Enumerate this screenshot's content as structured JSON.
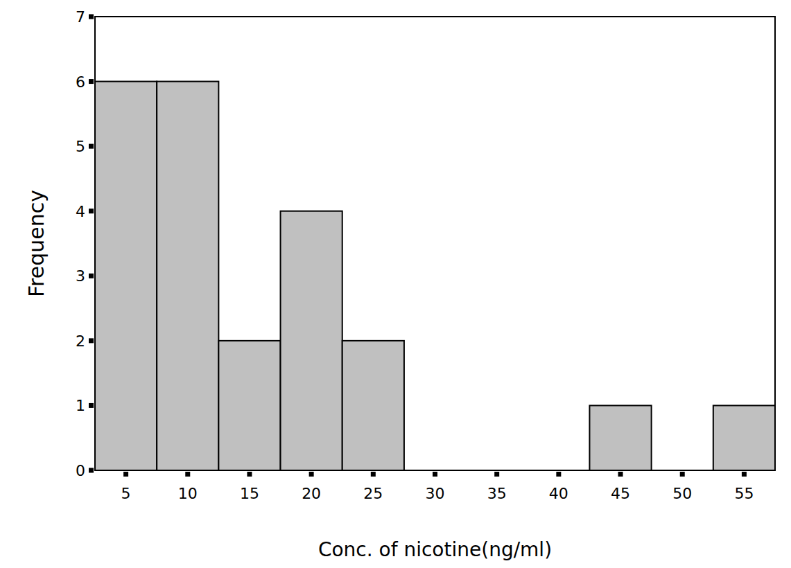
{
  "chart_data": {
    "type": "histogram",
    "x_label": "Conc. of nicotine(ng/ml)",
    "y_label": "Frequency",
    "bins": [
      2.5,
      7.5,
      12.5,
      17.5,
      22.5,
      27.5,
      32.5,
      37.5,
      42.5,
      47.5,
      52.5,
      57.5
    ],
    "values": [
      6,
      6,
      2,
      4,
      2,
      0,
      0,
      0,
      1,
      0,
      1
    ],
    "color": "#c0c0c0",
    "xlim": [
      2.5,
      57.5
    ],
    "xticks": [
      5,
      10,
      15,
      20,
      25,
      30,
      35,
      40,
      45,
      50,
      55
    ],
    "ylim": [
      0,
      7
    ],
    "yticks": [
      0,
      1,
      2,
      3,
      4,
      5,
      6,
      7
    ],
    "grid": false
  }
}
